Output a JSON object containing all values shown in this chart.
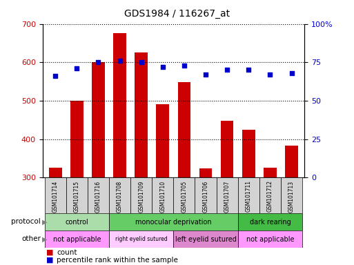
{
  "title": "GDS1984 / 116267_at",
  "samples": [
    "GSM101714",
    "GSM101715",
    "GSM101716",
    "GSM101708",
    "GSM101709",
    "GSM101710",
    "GSM101705",
    "GSM101706",
    "GSM101707",
    "GSM101711",
    "GSM101712",
    "GSM101713"
  ],
  "counts": [
    325,
    500,
    600,
    675,
    625,
    490,
    548,
    323,
    447,
    424,
    325,
    383
  ],
  "percentiles": [
    66,
    71,
    75,
    76,
    75,
    72,
    73,
    67,
    70,
    70,
    67,
    68
  ],
  "ylim_left": [
    300,
    700
  ],
  "ylim_right": [
    0,
    100
  ],
  "yticks_left": [
    300,
    400,
    500,
    600,
    700
  ],
  "yticks_right": [
    0,
    25,
    50,
    75,
    100
  ],
  "bar_color": "#CC0000",
  "dot_color": "#0000CC",
  "protocol_groups": [
    {
      "label": "control",
      "start": 0,
      "end": 3,
      "color": "#AADDAA"
    },
    {
      "label": "monocular deprivation",
      "start": 3,
      "end": 9,
      "color": "#66CC66"
    },
    {
      "label": "dark rearing",
      "start": 9,
      "end": 12,
      "color": "#44BB44"
    }
  ],
  "other_groups": [
    {
      "label": "not applicable",
      "start": 0,
      "end": 3,
      "color": "#FF99FF"
    },
    {
      "label": "right eyelid sutured",
      "start": 3,
      "end": 6,
      "color": "#FFCCFF"
    },
    {
      "label": "left eyelid sutured",
      "start": 6,
      "end": 9,
      "color": "#DD88CC"
    },
    {
      "label": "not applicable",
      "start": 9,
      "end": 12,
      "color": "#FF99FF"
    }
  ],
  "bg_color": "#FFFFFF",
  "tick_label_color_left": "#CC0000",
  "tick_label_color_right": "#0000CC"
}
